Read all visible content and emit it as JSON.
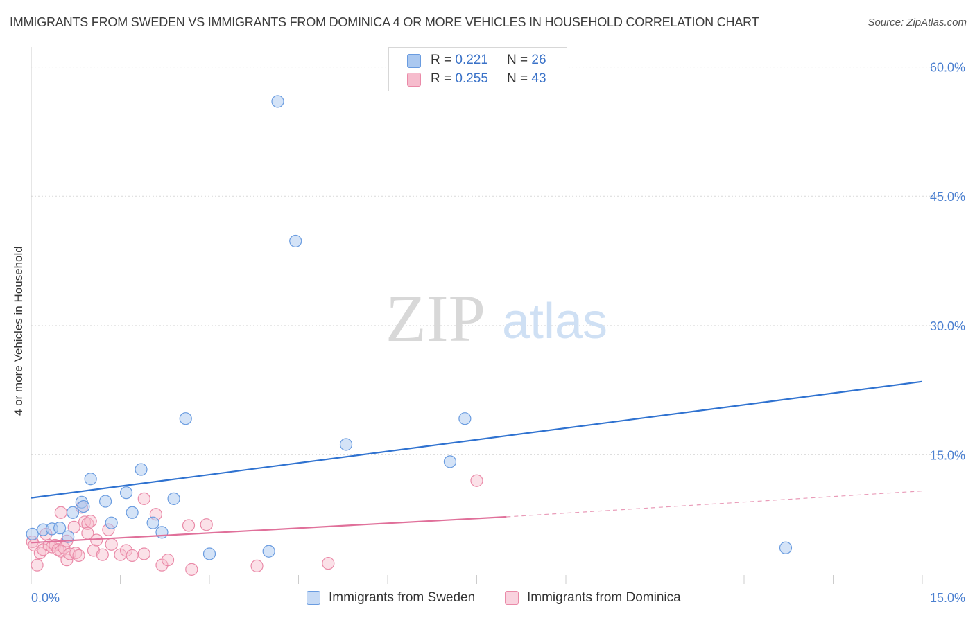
{
  "title": "IMMIGRANTS FROM SWEDEN VS IMMIGRANTS FROM DOMINICA 4 OR MORE VEHICLES IN HOUSEHOLD CORRELATION CHART",
  "source": "Source: ZipAtlas.com",
  "watermark": {
    "zip": "ZIP",
    "atlas": "atlas"
  },
  "colors": {
    "sweden_fill": "#aac8f0",
    "sweden_stroke": "#6a9ce0",
    "sweden_line": "#2f72d0",
    "dominica_fill": "#f6bccd",
    "dominica_stroke": "#ea8aa8",
    "dominica_line": "#e0709a",
    "grid": "#d9d9d9",
    "tick_text": "#4a7fd0"
  },
  "legend": {
    "rows": [
      {
        "r_label": "R = ",
        "r_value": "0.221",
        "n_label": "N = ",
        "n_value": "26"
      },
      {
        "r_label": "R = ",
        "r_value": "0.255",
        "n_label": "N = ",
        "n_value": "43"
      }
    ]
  },
  "chart_data": {
    "type": "scatter",
    "title": "IMMIGRANTS FROM SWEDEN VS IMMIGRANTS FROM DOMINICA 4 OR MORE VEHICLES IN HOUSEHOLD CORRELATION CHART",
    "xlabel": "",
    "ylabel": "4 or more Vehicles in Household",
    "xlim": [
      0,
      15
    ],
    "ylim": [
      0,
      61.5
    ],
    "x_tick_labels": [
      "0.0%",
      "15.0%"
    ],
    "y_ticks": [
      15,
      30,
      45,
      60
    ],
    "y_tick_labels": [
      "15.0%",
      "30.0%",
      "45.0%",
      "60.0%"
    ],
    "legend_position": "bottom",
    "series": [
      {
        "name": "Immigrants from Sweden",
        "r": 0.221,
        "n": 26,
        "trend": {
          "x": [
            0,
            15
          ],
          "y": [
            10.0,
            23.5
          ]
        },
        "points": [
          {
            "x": 0.02,
            "y": 5.8
          },
          {
            "x": 0.2,
            "y": 6.3
          },
          {
            "x": 0.35,
            "y": 6.4
          },
          {
            "x": 0.48,
            "y": 6.5
          },
          {
            "x": 0.62,
            "y": 5.5
          },
          {
            "x": 0.7,
            "y": 8.3
          },
          {
            "x": 0.85,
            "y": 9.5
          },
          {
            "x": 0.88,
            "y": 9.0
          },
          {
            "x": 1.0,
            "y": 12.2
          },
          {
            "x": 1.25,
            "y": 9.6
          },
          {
            "x": 1.35,
            "y": 7.1
          },
          {
            "x": 1.6,
            "y": 10.6
          },
          {
            "x": 1.7,
            "y": 8.3
          },
          {
            "x": 1.85,
            "y": 13.3
          },
          {
            "x": 2.05,
            "y": 7.1
          },
          {
            "x": 2.2,
            "y": 6.0
          },
          {
            "x": 2.4,
            "y": 9.9
          },
          {
            "x": 2.6,
            "y": 19.2
          },
          {
            "x": 3.0,
            "y": 3.5
          },
          {
            "x": 4.0,
            "y": 3.8
          },
          {
            "x": 4.15,
            "y": 56.0
          },
          {
            "x": 4.45,
            "y": 39.8
          },
          {
            "x": 5.3,
            "y": 16.2
          },
          {
            "x": 7.05,
            "y": 14.2
          },
          {
            "x": 7.3,
            "y": 19.2
          },
          {
            "x": 12.7,
            "y": 4.2
          }
        ]
      },
      {
        "name": "Immigrants from Dominica",
        "r": 0.255,
        "n": 43,
        "trend": {
          "x": [
            0,
            8.0
          ],
          "y": [
            4.8,
            7.8
          ]
        },
        "trend_extended": {
          "x": [
            8.0,
            15
          ],
          "y": [
            7.8,
            10.8
          ]
        },
        "points": [
          {
            "x": 0.02,
            "y": 4.9
          },
          {
            "x": 0.05,
            "y": 4.5
          },
          {
            "x": 0.1,
            "y": 2.2
          },
          {
            "x": 0.15,
            "y": 3.6
          },
          {
            "x": 0.2,
            "y": 4.0
          },
          {
            "x": 0.25,
            "y": 5.8
          },
          {
            "x": 0.3,
            "y": 4.5
          },
          {
            "x": 0.35,
            "y": 4.3
          },
          {
            "x": 0.4,
            "y": 4.5
          },
          {
            "x": 0.45,
            "y": 4.0
          },
          {
            "x": 0.5,
            "y": 3.8
          },
          {
            "x": 0.5,
            "y": 8.3
          },
          {
            "x": 0.55,
            "y": 4.2
          },
          {
            "x": 0.6,
            "y": 5.0
          },
          {
            "x": 0.6,
            "y": 2.8
          },
          {
            "x": 0.65,
            "y": 3.5
          },
          {
            "x": 0.72,
            "y": 6.6
          },
          {
            "x": 0.75,
            "y": 3.6
          },
          {
            "x": 0.8,
            "y": 3.3
          },
          {
            "x": 0.85,
            "y": 8.9
          },
          {
            "x": 0.9,
            "y": 7.2
          },
          {
            "x": 0.95,
            "y": 7.0
          },
          {
            "x": 0.95,
            "y": 5.9
          },
          {
            "x": 1.0,
            "y": 7.3
          },
          {
            "x": 1.05,
            "y": 3.9
          },
          {
            "x": 1.1,
            "y": 5.1
          },
          {
            "x": 1.2,
            "y": 3.4
          },
          {
            "x": 1.3,
            "y": 6.3
          },
          {
            "x": 1.35,
            "y": 4.6
          },
          {
            "x": 1.5,
            "y": 3.4
          },
          {
            "x": 1.6,
            "y": 3.9
          },
          {
            "x": 1.7,
            "y": 3.3
          },
          {
            "x": 1.9,
            "y": 3.5
          },
          {
            "x": 1.9,
            "y": 9.9
          },
          {
            "x": 2.1,
            "y": 8.1
          },
          {
            "x": 2.2,
            "y": 2.2
          },
          {
            "x": 2.3,
            "y": 2.8
          },
          {
            "x": 2.7,
            "y": 1.7
          },
          {
            "x": 2.95,
            "y": 6.9
          },
          {
            "x": 3.8,
            "y": 2.1
          },
          {
            "x": 5.0,
            "y": 2.4
          },
          {
            "x": 7.5,
            "y": 12.0
          },
          {
            "x": 2.65,
            "y": 6.8
          }
        ]
      }
    ]
  }
}
